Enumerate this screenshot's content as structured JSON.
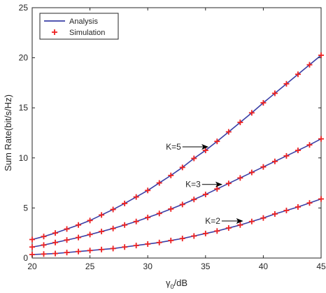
{
  "chart_data": {
    "type": "line",
    "xlabel_main": "γ",
    "xlabel_sub": "0",
    "xlabel_rest": "/dB",
    "ylabel": "Sum Rate(bit/s/Hz)",
    "xlim": [
      20,
      45
    ],
    "ylim": [
      0,
      25
    ],
    "xticks": [
      20,
      25,
      30,
      35,
      40,
      45
    ],
    "yticks": [
      0,
      5,
      10,
      15,
      20,
      25
    ],
    "grid": false,
    "legend_position": "top-left",
    "legend": [
      {
        "label": "Analysis",
        "marker": "line",
        "color": "#3a3fa6"
      },
      {
        "label": "Simulation",
        "marker": "plus",
        "color": "#ee2222"
      }
    ],
    "x": [
      20,
      21,
      22,
      23,
      24,
      25,
      26,
      27,
      28,
      29,
      30,
      31,
      32,
      33,
      34,
      35,
      36,
      37,
      38,
      39,
      40,
      41,
      42,
      43,
      44,
      45
    ],
    "series": [
      {
        "name": "K=5",
        "values": [
          1.85,
          2.15,
          2.5,
          2.9,
          3.3,
          3.75,
          4.3,
          4.85,
          5.45,
          6.1,
          6.75,
          7.5,
          8.25,
          9.05,
          9.95,
          10.75,
          11.65,
          12.6,
          13.55,
          14.5,
          15.5,
          16.45,
          17.4,
          18.35,
          19.3,
          20.25
        ]
      },
      {
        "name": "K=3",
        "values": [
          1.1,
          1.3,
          1.55,
          1.8,
          2.05,
          2.35,
          2.65,
          2.95,
          3.3,
          3.65,
          4.05,
          4.45,
          4.9,
          5.35,
          5.85,
          6.35,
          6.9,
          7.45,
          8.0,
          8.55,
          9.1,
          9.65,
          10.2,
          10.75,
          11.3,
          11.9
        ]
      },
      {
        "name": "K=2",
        "values": [
          0.35,
          0.4,
          0.45,
          0.55,
          0.65,
          0.75,
          0.85,
          0.95,
          1.1,
          1.25,
          1.4,
          1.55,
          1.75,
          1.95,
          2.2,
          2.45,
          2.7,
          3.0,
          3.3,
          3.65,
          4.0,
          4.4,
          4.75,
          5.1,
          5.5,
          5.9
        ]
      }
    ],
    "annotations": [
      {
        "text": "K=5",
        "x_arrow_start": 33.0,
        "x_arrow_end": 35.2,
        "y": 11.1
      },
      {
        "text": "K=3",
        "x_arrow_start": 34.7,
        "x_arrow_end": 36.4,
        "y": 7.35
      },
      {
        "text": "K=2",
        "x_arrow_start": 36.4,
        "x_arrow_end": 38.2,
        "y": 3.7
      }
    ],
    "colors": {
      "line": "#3a3fa6",
      "marker": "#ee2222",
      "axis": "#262626",
      "arrow": "#000000"
    }
  }
}
